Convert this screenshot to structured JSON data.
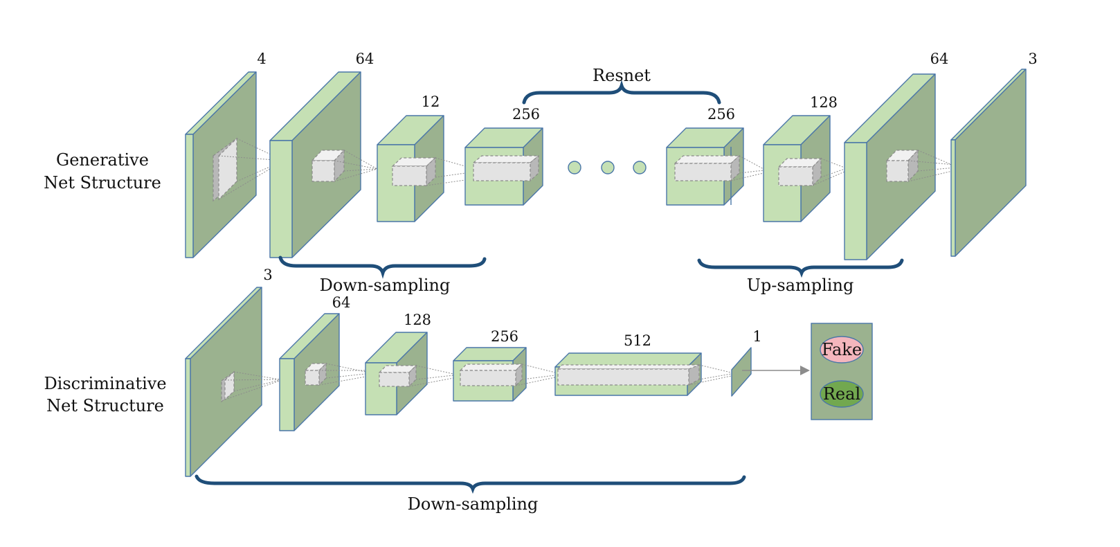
{
  "generator": {
    "label_line1": "Generative",
    "label_line2": "Net Structure",
    "layer_numbers": [
      "4",
      "64",
      "12",
      "256",
      "256",
      "128",
      "64",
      "3"
    ],
    "resnet_label": "Resnet",
    "downsampling_label": "Down-sampling",
    "upsampling_label": "Up-sampling"
  },
  "discriminator": {
    "label_line1": "Discriminative",
    "label_line2": "Net Structure",
    "layer_numbers": [
      "3",
      "64",
      "128",
      "256",
      "512",
      "1"
    ],
    "downsampling_label": "Down-sampling",
    "output_fake": "Fake",
    "output_real": "Real"
  },
  "colors": {
    "layer_light": "#c5e0b4",
    "layer_dark": "#9bb28f",
    "outline": "#4a76a8",
    "brace": "#1f4e79",
    "fake": "#f4b6bd",
    "real": "#72a84f"
  }
}
